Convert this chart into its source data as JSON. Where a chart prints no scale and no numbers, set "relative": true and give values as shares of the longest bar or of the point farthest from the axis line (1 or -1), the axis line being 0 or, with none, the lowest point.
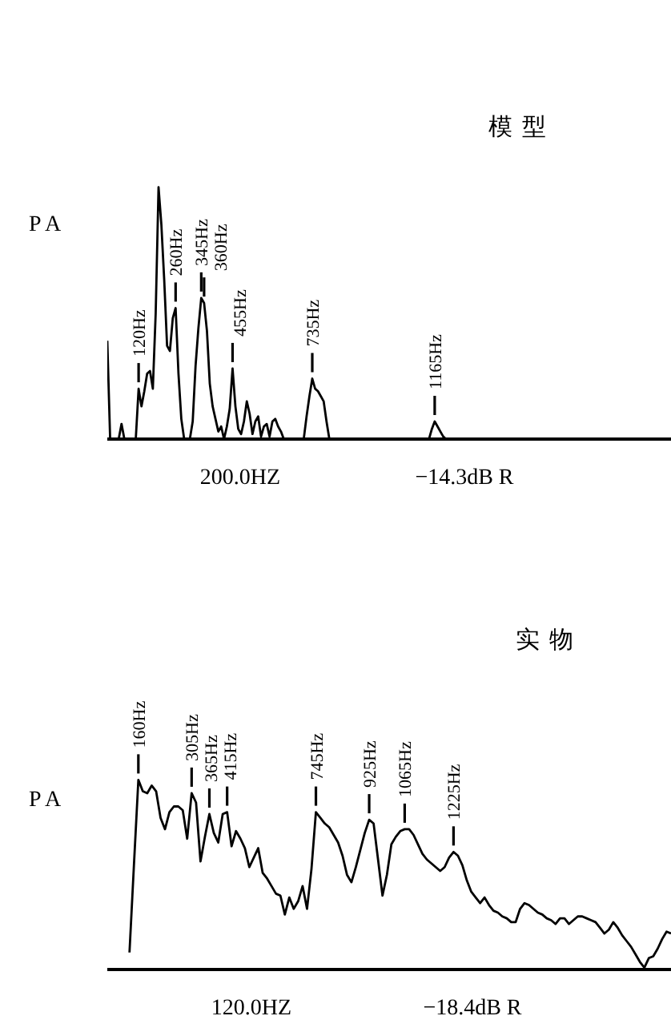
{
  "chart_data": [
    {
      "type": "line",
      "title": "模型",
      "ylabel": "P A",
      "xlabel": "200.0HZ",
      "relative": true,
      "marker": "none",
      "color": "#000000",
      "annotations": [
        "120Hz",
        "260Hz",
        "345Hz",
        "360Hz",
        "455Hz",
        "735Hz",
        "1165Hz",
        "−14.3dB R"
      ],
      "categories": [
        null,
        null,
        null,
        null,
        null,
        null,
        null,
        null,
        null,
        null,
        null,
        null,
        null,
        null,
        null,
        null,
        null,
        null,
        null,
        null,
        null,
        null,
        null,
        null,
        null,
        null,
        null,
        null,
        null,
        null,
        null,
        null,
        null,
        null,
        null,
        null,
        null,
        null,
        null,
        null,
        null,
        null,
        null,
        null,
        null,
        null,
        null,
        null,
        null,
        null,
        null,
        null,
        null,
        null,
        null,
        null,
        null,
        null,
        null,
        null,
        null,
        null,
        null,
        null,
        null,
        null,
        null,
        null,
        null,
        null,
        null,
        null,
        null,
        null,
        null,
        null,
        null,
        null,
        null,
        null,
        null,
        null,
        null,
        null,
        null,
        null,
        null,
        null,
        null,
        null,
        null,
        null,
        null,
        null,
        null,
        null,
        null,
        null,
        null,
        null,
        null,
        null,
        null,
        null,
        null,
        null,
        null,
        null,
        null,
        null,
        null,
        null,
        null,
        null,
        null,
        null,
        null,
        null,
        null,
        null,
        null,
        null,
        null,
        null,
        null,
        null,
        null,
        null,
        null,
        null,
        null,
        null,
        null,
        null,
        null,
        null,
        null,
        null,
        null,
        null,
        null,
        null,
        null,
        null,
        null,
        null,
        null,
        null,
        null,
        null,
        null,
        null,
        null,
        null,
        null,
        null,
        null,
        null,
        null,
        null,
        null,
        null,
        null,
        null,
        null,
        null,
        null,
        null,
        null,
        null,
        null,
        null,
        null,
        null,
        null,
        null,
        null,
        null,
        null,
        null,
        null,
        null,
        null,
        null,
        null,
        null,
        null,
        null,
        null,
        null,
        null,
        null,
        null,
        null,
        null,
        null,
        null,
        null,
        null
      ],
      "values": [
        0.39,
        0,
        0,
        0,
        0,
        0.06,
        0,
        0,
        0,
        0,
        0,
        0.2,
        0.13,
        0.19,
        0.26,
        0.27,
        0.2,
        0.5,
        1,
        0.85,
        0.63,
        0.37,
        0.35,
        0.48,
        0.52,
        0.26,
        0.08,
        0,
        0,
        0,
        0.07,
        0.29,
        0.44,
        0.56,
        0.54,
        0.43,
        0.22,
        0.13,
        0.08,
        0.03,
        0.05,
        0,
        0.05,
        0.12,
        0.28,
        0.13,
        0.04,
        0.02,
        0.07,
        0.15,
        0.1,
        0.02,
        0.07,
        0.09,
        0.01,
        0.05,
        0.06,
        0.01,
        0.07,
        0.08,
        0.05,
        0.03,
        0,
        0,
        0,
        0,
        0,
        0,
        0,
        0,
        0.09,
        0.17,
        0.24,
        0.2,
        0.19,
        0.17,
        0.15,
        0.07,
        0,
        0,
        0,
        0,
        0,
        0,
        0,
        0,
        0,
        0,
        0,
        0,
        0,
        0,
        0,
        0,
        0,
        0,
        0,
        0,
        0,
        0,
        0,
        0,
        0,
        0,
        0,
        0,
        0,
        0,
        0,
        0,
        0,
        0,
        0,
        0,
        0.04,
        0.07,
        0.05,
        0.03,
        0.01,
        0,
        null,
        null,
        null,
        null,
        null,
        null,
        null,
        null,
        null,
        null,
        null,
        null,
        null,
        null,
        null,
        null,
        null,
        null,
        null,
        null,
        null,
        null,
        null,
        null,
        null,
        null,
        null,
        null,
        null,
        null,
        null,
        null,
        null,
        null,
        null,
        null,
        null,
        null,
        null,
        null,
        null,
        null,
        null,
        null,
        null,
        null,
        null,
        null,
        null,
        null,
        null,
        null,
        null,
        null,
        null,
        null,
        null,
        null,
        null,
        null,
        null,
        null,
        null,
        null,
        null,
        null,
        null,
        null,
        null,
        null,
        null,
        null,
        null,
        null,
        null,
        null,
        null,
        null,
        null
      ]
    },
    {
      "type": "line",
      "title": "实物",
      "ylabel": "P A",
      "xlabel": "120.0HZ",
      "relative": true,
      "marker": "none",
      "color": "#000000",
      "annotations": [
        "160Hz",
        "305Hz",
        "365Hz",
        "415Hz",
        "745Hz",
        "925Hz",
        "1065Hz",
        "1225Hz",
        "−18.4dB R"
      ],
      "categories": [
        null,
        null,
        null,
        null,
        null,
        null,
        null,
        null,
        null,
        null,
        null,
        null,
        null,
        null,
        null,
        null,
        null,
        null,
        null,
        null,
        null,
        null,
        null,
        null,
        null,
        null,
        null,
        null,
        null,
        null,
        null,
        null,
        null,
        null,
        null,
        null,
        null,
        null,
        null,
        null,
        null,
        null,
        null,
        null,
        null,
        null,
        null,
        null,
        null,
        null,
        null,
        null,
        null,
        null,
        null,
        null,
        null,
        null,
        null,
        null,
        null,
        null,
        null,
        null,
        null,
        null,
        null,
        null,
        null,
        null,
        null,
        null,
        null,
        null,
        null,
        null,
        null,
        null,
        null,
        null,
        null,
        null,
        null,
        null,
        null,
        null,
        null,
        null,
        null,
        null,
        null,
        null,
        null,
        null,
        null,
        null,
        null,
        null,
        null,
        null,
        null,
        null,
        null,
        null,
        null,
        null,
        null,
        null,
        null,
        null,
        null,
        null,
        null,
        null,
        null,
        null,
        null,
        null,
        null,
        null,
        null,
        null,
        null,
        null,
        null,
        null,
        null,
        null
      ],
      "values": [
        null,
        null,
        null,
        null,
        null,
        0.09,
        0.55,
        1,
        0.94,
        0.93,
        0.97,
        0.94,
        0.8,
        0.74,
        0.83,
        0.86,
        0.86,
        0.84,
        0.69,
        0.93,
        0.88,
        0.57,
        0.7,
        0.82,
        0.72,
        0.67,
        0.82,
        0.83,
        0.65,
        0.73,
        0.69,
        0.64,
        0.54,
        0.59,
        0.64,
        0.51,
        0.48,
        0.44,
        0.4,
        0.39,
        0.29,
        0.38,
        0.32,
        0.36,
        0.44,
        0.32,
        0.53,
        0.83,
        0.8,
        0.77,
        0.75,
        0.71,
        0.67,
        0.6,
        0.5,
        0.46,
        0.54,
        0.63,
        0.72,
        0.79,
        0.77,
        0.58,
        0.39,
        0.5,
        0.66,
        0.7,
        0.73,
        0.74,
        0.74,
        0.71,
        0.66,
        0.61,
        0.58,
        0.56,
        0.54,
        0.52,
        0.54,
        0.59,
        0.62,
        0.6,
        0.55,
        0.47,
        0.41,
        0.38,
        0.35,
        0.38,
        0.34,
        0.31,
        0.3,
        0.28,
        0.27,
        0.25,
        0.25,
        0.32,
        0.35,
        0.34,
        0.32,
        0.3,
        0.29,
        0.27,
        0.26,
        0.24,
        0.27,
        0.27,
        0.24,
        0.26,
        0.28,
        0.28,
        0.27,
        0.26,
        0.25,
        0.22,
        0.19,
        0.21,
        0.25,
        0.22,
        0.18,
        0.15,
        0.12,
        0.08,
        0.04,
        0.01,
        0.06,
        0.07,
        0.11,
        0.16,
        0.2,
        0.19
      ]
    }
  ]
}
